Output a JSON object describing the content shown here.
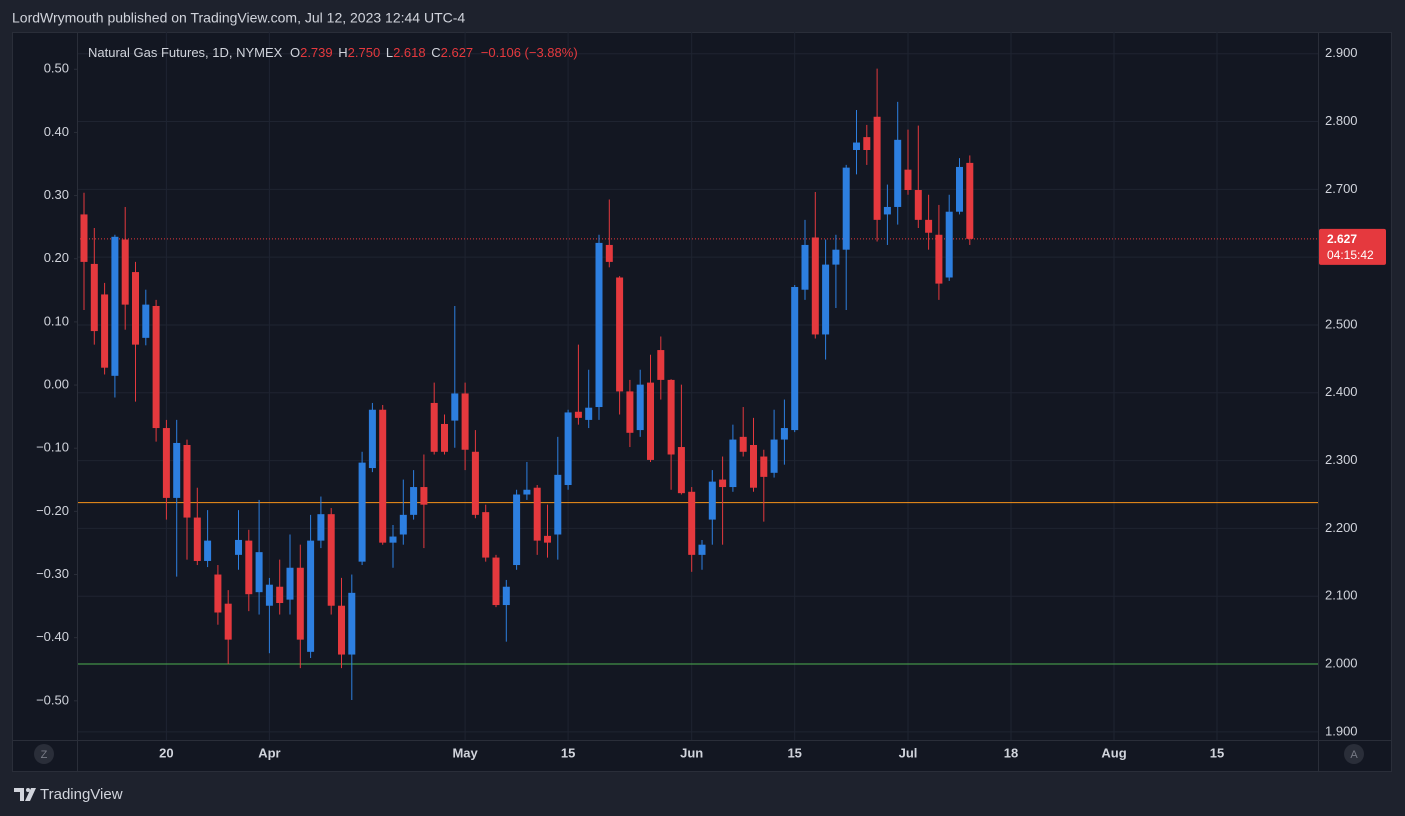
{
  "header": {
    "text": "LordWrymouth published on TradingView.com, Jul 12, 2023 12:44 UTC-4"
  },
  "footer": {
    "brand": "TradingView"
  },
  "buttons": [
    "Z",
    "A"
  ],
  "chart_data": {
    "type": "candlestick",
    "title": "Natural Gas Futures, 1D, NYMEX",
    "ohlc_labels": [
      "O",
      "H",
      "L",
      "C"
    ],
    "last_labels": [
      "2.739",
      "2.750",
      "2.618",
      "2.627"
    ],
    "change_label": "−0.106 (−3.88%)",
    "countdown": "04:15:42",
    "up_color": "#2d7fe0",
    "down_color": "#e5393e",
    "x": [
      "Mar 8",
      "Mar 9",
      "Mar 10",
      "Mar 13",
      "Mar 14",
      "Mar 15",
      "Mar 16",
      "Mar 17",
      "Mar 20",
      "Mar 21",
      "Mar 22",
      "Mar 23",
      "Mar 24",
      "Mar 27",
      "Mar 28",
      "Mar 29",
      "Mar 30",
      "Mar 31",
      "Apr 3",
      "Apr 4",
      "Apr 5",
      "Apr 6",
      "Apr 10",
      "Apr 11",
      "Apr 12",
      "Apr 13",
      "Apr 14",
      "Apr 17",
      "Apr 18",
      "Apr 19",
      "Apr 20",
      "Apr 21",
      "Apr 24",
      "Apr 25",
      "Apr 26",
      "Apr 27",
      "Apr 28",
      "May 1",
      "May 2",
      "May 3",
      "May 4",
      "May 5",
      "May 8",
      "May 9",
      "May 10",
      "May 11",
      "May 12",
      "May 15",
      "May 16",
      "May 17",
      "May 18",
      "May 19",
      "May 22",
      "May 23",
      "May 24",
      "May 25",
      "May 26",
      "May 30",
      "May 31",
      "Jun 1",
      "Jun 2",
      "Jun 5",
      "Jun 6",
      "Jun 7",
      "Jun 8",
      "Jun 9",
      "Jun 12",
      "Jun 13",
      "Jun 14",
      "Jun 15",
      "Jun 16",
      "Jun 20",
      "Jun 21",
      "Jun 22",
      "Jun 23",
      "Jun 26",
      "Jun 27",
      "Jun 28",
      "Jun 29",
      "Jun 30",
      "Jul 3",
      "Jul 5",
      "Jul 6",
      "Jul 7",
      "Jul 10",
      "Jul 11",
      "Jul 12"
    ],
    "open": [
      2.663,
      2.59,
      2.545,
      2.425,
      2.626,
      2.578,
      2.481,
      2.528,
      2.348,
      2.245,
      2.323,
      2.216,
      2.152,
      2.132,
      2.089,
      2.161,
      2.182,
      2.106,
      2.086,
      2.114,
      2.095,
      2.142,
      2.018,
      2.182,
      2.221,
      2.086,
      2.014,
      2.151,
      2.289,
      2.375,
      2.179,
      2.191,
      2.22,
      2.261,
      2.385,
      2.354,
      2.359,
      2.399,
      2.313,
      2.224,
      2.157,
      2.087,
      2.146,
      2.25,
      2.26,
      2.189,
      2.191,
      2.264,
      2.372,
      2.36,
      2.379,
      2.618,
      2.57,
      2.402,
      2.345,
      2.415,
      2.463,
      2.419,
      2.32,
      2.254,
      2.161,
      2.213,
      2.272,
      2.261,
      2.335,
      2.323,
      2.306,
      2.282,
      2.331,
      2.345,
      2.552,
      2.629,
      2.486,
      2.589,
      2.611,
      2.758,
      2.777,
      2.807,
      2.663,
      2.674,
      2.729,
      2.699,
      2.655,
      2.633,
      2.57,
      2.667,
      2.739
    ],
    "high": [
      2.695,
      2.643,
      2.562,
      2.633,
      2.674,
      2.593,
      2.552,
      2.537,
      2.36,
      2.36,
      2.331,
      2.26,
      2.227,
      2.146,
      2.109,
      2.227,
      2.198,
      2.242,
      2.127,
      2.154,
      2.191,
      2.176,
      2.22,
      2.247,
      2.23,
      2.127,
      2.132,
      2.313,
      2.385,
      2.382,
      2.205,
      2.272,
      2.286,
      2.309,
      2.415,
      2.368,
      2.528,
      2.415,
      2.345,
      2.235,
      2.161,
      2.124,
      2.257,
      2.298,
      2.264,
      2.235,
      2.335,
      2.375,
      2.471,
      2.434,
      2.633,
      2.685,
      2.572,
      2.419,
      2.434,
      2.456,
      2.483,
      2.42,
      2.412,
      2.261,
      2.183,
      2.286,
      2.306,
      2.353,
      2.379,
      2.363,
      2.316,
      2.375,
      2.39,
      2.559,
      2.655,
      2.696,
      2.626,
      2.633,
      2.736,
      2.817,
      2.795,
      2.878,
      2.707,
      2.829,
      2.788,
      2.794,
      2.692,
      2.677,
      2.692,
      2.746,
      2.75
    ],
    "low": [
      2.522,
      2.471,
      2.427,
      2.393,
      2.493,
      2.387,
      2.47,
      2.328,
      2.213,
      2.129,
      2.154,
      2.146,
      2.143,
      2.058,
      2.0,
      2.139,
      2.078,
      2.073,
      2.016,
      2.073,
      2.073,
      1.994,
      2.009,
      2.171,
      2.073,
      1.994,
      1.947,
      2.146,
      2.283,
      2.176,
      2.142,
      2.176,
      2.213,
      2.171,
      2.309,
      2.309,
      2.319,
      2.286,
      2.215,
      2.151,
      2.084,
      2.033,
      2.139,
      2.242,
      2.161,
      2.157,
      2.154,
      2.257,
      2.353,
      2.348,
      2.36,
      2.585,
      2.368,
      2.32,
      2.335,
      2.298,
      2.39,
      2.257,
      2.25,
      2.136,
      2.139,
      2.176,
      2.176,
      2.254,
      2.306,
      2.254,
      2.21,
      2.275,
      2.294,
      2.342,
      2.537,
      2.48,
      2.449,
      2.525,
      2.522,
      2.722,
      2.736,
      2.623,
      2.618,
      2.648,
      2.692,
      2.643,
      2.611,
      2.537,
      2.565,
      2.663,
      2.618
    ],
    "close": [
      2.593,
      2.491,
      2.437,
      2.63,
      2.53,
      2.471,
      2.53,
      2.348,
      2.245,
      2.326,
      2.216,
      2.152,
      2.182,
      2.076,
      2.036,
      2.183,
      2.103,
      2.165,
      2.117,
      2.09,
      2.142,
      2.036,
      2.182,
      2.221,
      2.086,
      2.014,
      2.105,
      2.297,
      2.375,
      2.179,
      2.188,
      2.22,
      2.261,
      2.235,
      2.313,
      2.313,
      2.399,
      2.316,
      2.22,
      2.157,
      2.087,
      2.114,
      2.25,
      2.257,
      2.182,
      2.179,
      2.279,
      2.371,
      2.363,
      2.378,
      2.621,
      2.593,
      2.402,
      2.341,
      2.412,
      2.301,
      2.419,
      2.309,
      2.252,
      2.161,
      2.176,
      2.269,
      2.261,
      2.331,
      2.313,
      2.26,
      2.276,
      2.331,
      2.348,
      2.556,
      2.618,
      2.486,
      2.589,
      2.611,
      2.732,
      2.769,
      2.758,
      2.655,
      2.674,
      2.773,
      2.699,
      2.655,
      2.636,
      2.561,
      2.667,
      2.733,
      2.627
    ],
    "xticks": [
      {
        "value": "Mar 20",
        "label": "20"
      },
      {
        "value": "Apr 3",
        "label": "Apr"
      },
      {
        "value": "May 1",
        "label": "May"
      },
      {
        "value": "May 15",
        "label": "15"
      },
      {
        "value": "Jun 1",
        "label": "Jun"
      },
      {
        "value": "Jun 15",
        "label": "15"
      },
      {
        "value": "Jul 3",
        "label": "Jul"
      },
      {
        "value": "Jul 18",
        "label": "18"
      },
      {
        "value": "Aug 1",
        "label": "Aug"
      },
      {
        "value": "Aug 15",
        "label": "15"
      }
    ],
    "ylim": [
      1.888,
      2.932
    ],
    "yticks": [
      {
        "value": 1.9,
        "label": "1.900"
      },
      {
        "value": 2.0,
        "label": "2.000"
      },
      {
        "value": 2.1,
        "label": "2.100"
      },
      {
        "value": 2.2,
        "label": "2.200"
      },
      {
        "value": 2.3,
        "label": "2.300"
      },
      {
        "value": 2.4,
        "label": "2.400"
      },
      {
        "value": 2.5,
        "label": "2.500"
      },
      {
        "value": 2.6,
        "label": "2.600"
      },
      {
        "value": 2.7,
        "label": "2.700"
      },
      {
        "value": 2.8,
        "label": "2.800"
      },
      {
        "value": 2.9,
        "label": "2.900"
      }
    ],
    "y2lim": [
      -0.562,
      0.559
    ],
    "y2ticks": [
      {
        "value": 0.5,
        "label": "0.50"
      },
      {
        "value": 0.4,
        "label": "0.40"
      },
      {
        "value": 0.3,
        "label": "0.30"
      },
      {
        "value": 0.2,
        "label": "0.20"
      },
      {
        "value": 0.1,
        "label": "0.10"
      },
      {
        "value": 0,
        "label": "0.00"
      },
      {
        "value": -0.1,
        "label": "−0.10"
      },
      {
        "value": -0.2,
        "label": "−0.20"
      },
      {
        "value": -0.3,
        "label": "−0.30"
      },
      {
        "value": -0.4,
        "label": "−0.40"
      },
      {
        "value": -0.5,
        "label": "−0.50"
      }
    ],
    "hlines": [
      {
        "value": 2.238,
        "color": "#f7931a"
      },
      {
        "value": 2.0,
        "color": "#4caf50"
      }
    ],
    "grid": true
  }
}
